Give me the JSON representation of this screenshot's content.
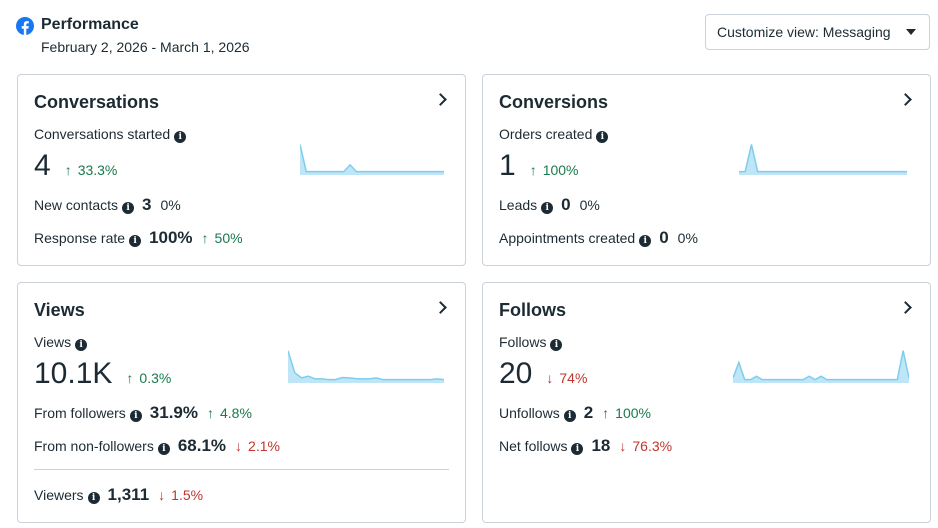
{
  "header": {
    "title": "Performance",
    "date_range": "February 2, 2026 - March 1, 2026",
    "customize_label": "Customize view: Messaging"
  },
  "colors": {
    "accent": "#1877f2",
    "up": "#1a7a4c",
    "down": "#c0352e",
    "spark_fill": "#bfe6f7",
    "spark_line": "#7fcdee"
  },
  "cards": {
    "conversations": {
      "title": "Conversations",
      "primary_label": "Conversations started",
      "primary_value": "4",
      "primary_delta": "33.3%",
      "primary_dir": "up",
      "rows": [
        {
          "label": "New contacts",
          "value": "3",
          "delta": "0%",
          "dir": "none"
        },
        {
          "label": "Response rate",
          "value": "100%",
          "delta": "50%",
          "dir": "up"
        }
      ],
      "spark": [
        0.9,
        0.1,
        0.1,
        0.1,
        0.1,
        0.1,
        0.1,
        0.1,
        0.3,
        0.1,
        0.1,
        0.1,
        0.1,
        0.1,
        0.1,
        0.1,
        0.1,
        0.1,
        0.1,
        0.1,
        0.1,
        0.1,
        0.1,
        0.1
      ]
    },
    "conversions": {
      "title": "Conversions",
      "primary_label": "Orders created",
      "primary_value": "1",
      "primary_delta": "100%",
      "primary_dir": "up",
      "rows": [
        {
          "label": "Leads",
          "value": "0",
          "delta": "0%",
          "dir": "none"
        },
        {
          "label": "Appointments created",
          "value": "0",
          "delta": "0%",
          "dir": "none"
        }
      ],
      "spark": [
        0.1,
        0.1,
        0.9,
        0.1,
        0.1,
        0.1,
        0.1,
        0.1,
        0.1,
        0.1,
        0.1,
        0.1,
        0.1,
        0.1,
        0.1,
        0.1,
        0.1,
        0.1,
        0.1,
        0.1,
        0.1,
        0.1,
        0.1,
        0.1,
        0.1,
        0.1,
        0.1,
        0.1
      ]
    },
    "views": {
      "title": "Views",
      "primary_label": "Views",
      "primary_value": "10.1K",
      "primary_delta": "0.3%",
      "primary_dir": "up",
      "rows": [
        {
          "label": "From followers",
          "value": "31.9%",
          "delta": "4.8%",
          "dir": "up"
        },
        {
          "label": "From non-followers",
          "value": "68.1%",
          "delta": "2.1%",
          "dir": "down"
        }
      ],
      "footer": {
        "label": "Viewers",
        "value": "1,311",
        "delta": "1.5%",
        "dir": "down"
      },
      "spark": [
        0.95,
        0.3,
        0.15,
        0.2,
        0.12,
        0.12,
        0.1,
        0.1,
        0.16,
        0.15,
        0.13,
        0.12,
        0.12,
        0.15,
        0.1,
        0.1,
        0.1,
        0.1,
        0.1,
        0.1,
        0.1,
        0.1,
        0.12,
        0.1
      ]
    },
    "follows": {
      "title": "Follows",
      "primary_label": "Follows",
      "primary_value": "20",
      "primary_delta": "74%",
      "primary_dir": "down",
      "rows": [
        {
          "label": "Unfollows",
          "value": "2",
          "delta": "100%",
          "dir": "up"
        },
        {
          "label": "Net follows",
          "value": "18",
          "delta": "76.3%",
          "dir": "down"
        }
      ],
      "spark": [
        0.15,
        0.6,
        0.1,
        0.1,
        0.2,
        0.1,
        0.1,
        0.1,
        0.1,
        0.1,
        0.1,
        0.1,
        0.1,
        0.2,
        0.1,
        0.2,
        0.1,
        0.1,
        0.1,
        0.1,
        0.1,
        0.1,
        0.1,
        0.1,
        0.1,
        0.1,
        0.1,
        0.1,
        0.1,
        0.95,
        0.15
      ]
    }
  }
}
